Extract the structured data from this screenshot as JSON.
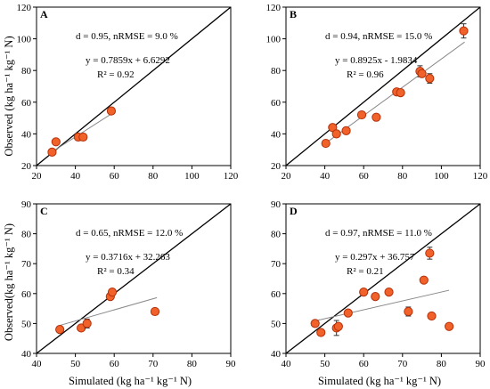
{
  "colors": {
    "marker_fill": "#f0622a",
    "marker_stroke": "#b5300a",
    "one_to_one": "#000000",
    "regression": "#888888",
    "axis": "#000000"
  },
  "axes": {
    "xlabel": "Simulated (kg ha⁻¹ kg⁻¹ N)",
    "ylabel_top": "Observed (kg ha⁻¹ kg⁻¹ N)",
    "ylabel_bottom": "Observed(kg ha⁻¹ kg⁻¹ N)"
  },
  "chart_data": [
    {
      "type": "scatter",
      "panel": "A",
      "xlim": [
        20,
        120
      ],
      "ylim": [
        20,
        120
      ],
      "xticks": [
        "20",
        "40",
        "60",
        "80",
        "100",
        "120"
      ],
      "yticks": [
        "20",
        "40",
        "60",
        "80",
        "100",
        "120"
      ],
      "stats": "d = 0.95, nRMSE = 9.0 %",
      "equation": "y = 0.7859x + 6.6292",
      "r2": "R² = 0.92",
      "regression": {
        "slope": 0.7859,
        "intercept": 6.6292,
        "x_range": [
          28,
          60
        ]
      },
      "points": [
        {
          "x": 28,
          "y": 28.5
        },
        {
          "x": 30,
          "y": 35
        },
        {
          "x": 41.5,
          "y": 38
        },
        {
          "x": 44,
          "y": 38
        },
        {
          "x": 58.5,
          "y": 54.5
        }
      ]
    },
    {
      "type": "scatter",
      "panel": "B",
      "xlim": [
        20,
        120
      ],
      "ylim": [
        20,
        120
      ],
      "xticks": [
        "20",
        "40",
        "60",
        "80",
        "100",
        "120"
      ],
      "yticks": [
        "20",
        "40",
        "60",
        "80",
        "100",
        "120"
      ],
      "stats": "d = 0.94, nRMSE = 15.0 %",
      "equation": "y = 0.8925x - 1.9834",
      "r2": "R² = 0.96",
      "regression": {
        "slope": 0.8925,
        "intercept": -1.9834,
        "x_range": [
          40,
          112
        ]
      },
      "points": [
        {
          "x": 40.5,
          "y": 34,
          "err": 1
        },
        {
          "x": 44,
          "y": 44,
          "err": 1
        },
        {
          "x": 46,
          "y": 40,
          "err": 1.5
        },
        {
          "x": 51,
          "y": 42,
          "err": 2
        },
        {
          "x": 59,
          "y": 52,
          "err": 1
        },
        {
          "x": 66.5,
          "y": 50.5,
          "err": 1
        },
        {
          "x": 77,
          "y": 66.5,
          "err": 1
        },
        {
          "x": 79,
          "y": 66,
          "err": 1.5
        },
        {
          "x": 89,
          "y": 79.5,
          "err": 3.5
        },
        {
          "x": 90,
          "y": 78,
          "err": 2
        },
        {
          "x": 94,
          "y": 75,
          "err": 3
        },
        {
          "x": 111.5,
          "y": 105,
          "err": 4.5
        }
      ]
    },
    {
      "type": "scatter",
      "panel": "C",
      "xlim": [
        40,
        90
      ],
      "ylim": [
        40,
        90
      ],
      "xticks": [
        "40",
        "50",
        "60",
        "70",
        "80",
        "90"
      ],
      "yticks": [
        "40",
        "50",
        "60",
        "70",
        "80",
        "90"
      ],
      "stats": "d = 0.65, nRMSE = 12.0 %",
      "equation": "y = 0.3716x + 32.263",
      "r2": "R² = 0.34",
      "regression": {
        "slope": 0.3716,
        "intercept": 32.263,
        "x_range": [
          46,
          71
        ]
      },
      "points": [
        {
          "x": 46,
          "y": 48,
          "err": 0.5
        },
        {
          "x": 51.5,
          "y": 48.5,
          "err": 0.5
        },
        {
          "x": 53,
          "y": 50,
          "err": 1.5
        },
        {
          "x": 59,
          "y": 59,
          "err": 0.8
        },
        {
          "x": 59.5,
          "y": 60.5,
          "err": 0.8
        },
        {
          "x": 70.5,
          "y": 54,
          "err": 0.5
        }
      ]
    },
    {
      "type": "scatter",
      "panel": "D",
      "xlim": [
        40,
        90
      ],
      "ylim": [
        40,
        90
      ],
      "xticks": [
        "40",
        "50",
        "60",
        "70",
        "80",
        "90"
      ],
      "yticks": [
        "40",
        "50",
        "60",
        "70",
        "80",
        "90"
      ],
      "stats": "d = 0.97, nRMSE = 11.0 %",
      "equation": "y = 0.297x + 36.757",
      "r2": "R² = 0.21",
      "regression": {
        "slope": 0.297,
        "intercept": 36.757,
        "x_range": [
          47,
          82
        ]
      },
      "points": [
        {
          "x": 47.5,
          "y": 50,
          "err": 1
        },
        {
          "x": 49,
          "y": 47,
          "err": 0.5
        },
        {
          "x": 53,
          "y": 48.5,
          "err": 2.5
        },
        {
          "x": 53.5,
          "y": 49,
          "err": 0.5
        },
        {
          "x": 56,
          "y": 53.5,
          "err": 0.5
        },
        {
          "x": 60,
          "y": 60.5,
          "err": 0.5
        },
        {
          "x": 63,
          "y": 59,
          "err": 0.5
        },
        {
          "x": 66.5,
          "y": 60.5,
          "err": 0.5
        },
        {
          "x": 71.5,
          "y": 54,
          "err": 1.5
        },
        {
          "x": 75.5,
          "y": 64.5,
          "err": 1
        },
        {
          "x": 77,
          "y": 73.5,
          "err": 2
        },
        {
          "x": 77.5,
          "y": 52.5,
          "err": 0.5
        },
        {
          "x": 82,
          "y": 49,
          "err": 0.5
        }
      ]
    }
  ]
}
